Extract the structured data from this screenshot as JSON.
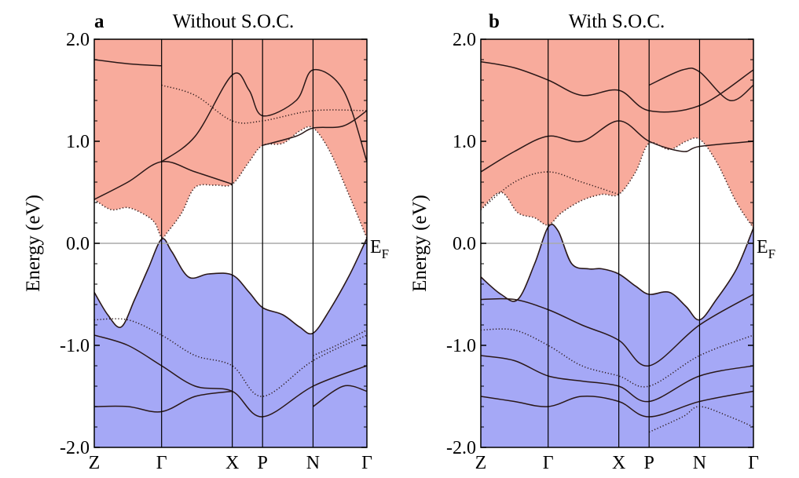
{
  "colors": {
    "conduction": "#f8ab9c",
    "valence": "#a5a8f6",
    "band_line": "#2a1818",
    "fermi_line": "#aaaaaa",
    "frame": "#000000"
  },
  "chart_data": [
    {
      "type": "area",
      "panel_letter": "a",
      "title": "Without S.O.C.",
      "ylabel": "Energy (eV)",
      "ylim": [
        -2.0,
        2.0
      ],
      "yticks": [
        "-2.0",
        "-1.0",
        "0.0",
        "1.0",
        "2.0"
      ],
      "kpoints": [
        "Z",
        "Γ",
        "X",
        "P",
        "N",
        "Γ"
      ],
      "kpoint_positions": [
        0,
        1,
        2.05,
        2.5,
        3.25,
        4.05
      ],
      "fermi_label": "E",
      "fermi_sub": "F",
      "conduction_band_minimum": [
        [
          0,
          0.43
        ],
        [
          0.25,
          0.33
        ],
        [
          0.5,
          0.35
        ],
        [
          0.75,
          0.28
        ],
        [
          0.9,
          0.2
        ],
        [
          1,
          0.06
        ],
        [
          1.1,
          0.12
        ],
        [
          1.3,
          0.3
        ],
        [
          1.5,
          0.55
        ],
        [
          1.8,
          0.57
        ],
        [
          2.05,
          0.58
        ],
        [
          2.3,
          0.8
        ],
        [
          2.5,
          0.96
        ],
        [
          2.8,
          0.98
        ],
        [
          3.05,
          1.1
        ],
        [
          3.25,
          1.13
        ],
        [
          3.5,
          0.9
        ],
        [
          3.8,
          0.45
        ],
        [
          4.05,
          0.05
        ]
      ],
      "valence_band_maximum": [
        [
          0,
          -0.48
        ],
        [
          0.2,
          -0.7
        ],
        [
          0.4,
          -0.82
        ],
        [
          0.6,
          -0.55
        ],
        [
          0.8,
          -0.25
        ],
        [
          1,
          0.04
        ],
        [
          1.15,
          -0.08
        ],
        [
          1.4,
          -0.33
        ],
        [
          1.7,
          -0.3
        ],
        [
          2.05,
          -0.31
        ],
        [
          2.3,
          -0.48
        ],
        [
          2.5,
          -0.63
        ],
        [
          2.8,
          -0.7
        ],
        [
          3.05,
          -0.82
        ],
        [
          3.25,
          -0.88
        ],
        [
          3.5,
          -0.65
        ],
        [
          3.8,
          -0.3
        ],
        [
          4.05,
          0.05
        ]
      ],
      "bands": [
        [
          [
            0,
            1.8
          ],
          [
            0.5,
            1.76
          ],
          [
            1,
            1.74
          ]
        ],
        [
          [
            0,
            0.43
          ],
          [
            0.5,
            0.6
          ],
          [
            1,
            0.8
          ],
          [
            1.5,
            0.7
          ],
          [
            2.05,
            0.58
          ]
        ],
        [
          [
            1,
            1.55
          ],
          [
            1.5,
            1.45
          ],
          [
            2.05,
            1.2
          ],
          [
            2.5,
            1.2
          ],
          [
            3.25,
            1.3
          ],
          [
            4.05,
            1.3
          ]
        ],
        [
          [
            1,
            0.8
          ],
          [
            1.5,
            1.05
          ],
          [
            2.05,
            1.65
          ],
          [
            2.3,
            1.5
          ],
          [
            2.5,
            1.25
          ],
          [
            3,
            1.4
          ],
          [
            3.25,
            1.7
          ],
          [
            3.7,
            1.5
          ],
          [
            4.05,
            0.8
          ]
        ],
        [
          [
            2.5,
            0.96
          ],
          [
            3,
            1.05
          ],
          [
            3.25,
            1.13
          ],
          [
            3.7,
            1.15
          ],
          [
            4.05,
            1.3
          ]
        ],
        [
          [
            0,
            -0.75
          ],
          [
            0.5,
            -0.75
          ],
          [
            1,
            -0.9
          ],
          [
            1.5,
            -1.1
          ],
          [
            2.05,
            -1.2
          ],
          [
            2.5,
            -1.5
          ],
          [
            3.25,
            -1.15
          ],
          [
            4.05,
            -0.9
          ]
        ],
        [
          [
            0,
            -0.9
          ],
          [
            0.5,
            -1.0
          ],
          [
            1,
            -1.2
          ],
          [
            1.5,
            -1.4
          ],
          [
            2.05,
            -1.45
          ],
          [
            2.5,
            -1.7
          ],
          [
            3.25,
            -1.4
          ],
          [
            4.05,
            -1.2
          ]
        ],
        [
          [
            0,
            -1.6
          ],
          [
            0.5,
            -1.6
          ],
          [
            1,
            -1.65
          ],
          [
            1.5,
            -1.5
          ],
          [
            2.05,
            -1.45
          ]
        ],
        [
          [
            3.25,
            -1.1
          ],
          [
            3.6,
            -1.0
          ],
          [
            4.05,
            -0.85
          ]
        ],
        [
          [
            3.25,
            -1.6
          ],
          [
            3.7,
            -1.4
          ],
          [
            4.05,
            -1.45
          ]
        ]
      ]
    },
    {
      "type": "area",
      "panel_letter": "b",
      "title": "With S.O.C.",
      "ylabel": "Energy (eV)",
      "ylim": [
        -2.0,
        2.0
      ],
      "yticks": [
        "-2.0",
        "-1.0",
        "0.0",
        "1.0",
        "2.0"
      ],
      "kpoints": [
        "Z",
        "Γ",
        "X",
        "P",
        "N",
        "Γ"
      ],
      "kpoint_positions": [
        0,
        1,
        2.05,
        2.5,
        3.25,
        4.05
      ],
      "fermi_label": "E",
      "fermi_sub": "F",
      "conduction_band_minimum": [
        [
          0,
          0.33
        ],
        [
          0.3,
          0.5
        ],
        [
          0.55,
          0.3
        ],
        [
          0.8,
          0.25
        ],
        [
          1,
          0.18
        ],
        [
          1.2,
          0.3
        ],
        [
          1.5,
          0.42
        ],
        [
          1.8,
          0.48
        ],
        [
          2.05,
          0.48
        ],
        [
          2.3,
          0.7
        ],
        [
          2.5,
          0.98
        ],
        [
          2.8,
          0.92
        ],
        [
          3.05,
          1.0
        ],
        [
          3.25,
          1.02
        ],
        [
          3.5,
          0.8
        ],
        [
          3.8,
          0.4
        ],
        [
          4.05,
          0.15
        ]
      ],
      "valence_band_maximum": [
        [
          0,
          -0.33
        ],
        [
          0.3,
          -0.5
        ],
        [
          0.55,
          -0.55
        ],
        [
          0.8,
          -0.2
        ],
        [
          1,
          0.16
        ],
        [
          1.15,
          0.12
        ],
        [
          1.35,
          -0.2
        ],
        [
          1.6,
          -0.25
        ],
        [
          1.8,
          -0.25
        ],
        [
          2.05,
          -0.3
        ],
        [
          2.3,
          -0.42
        ],
        [
          2.5,
          -0.5
        ],
        [
          2.8,
          -0.48
        ],
        [
          3.05,
          -0.62
        ],
        [
          3.25,
          -0.75
        ],
        [
          3.5,
          -0.55
        ],
        [
          3.8,
          -0.25
        ],
        [
          4.05,
          0.15
        ]
      ],
      "bands": [
        [
          [
            0,
            1.78
          ],
          [
            0.5,
            1.72
          ],
          [
            1,
            1.6
          ],
          [
            1.5,
            1.45
          ],
          [
            2.05,
            1.5
          ],
          [
            2.5,
            1.3
          ],
          [
            3.25,
            1.35
          ],
          [
            4.05,
            1.7
          ]
        ],
        [
          [
            0,
            0.7
          ],
          [
            0.5,
            0.9
          ],
          [
            1,
            1.05
          ],
          [
            1.5,
            1.0
          ],
          [
            2.05,
            1.2
          ],
          [
            2.5,
            1.0
          ],
          [
            3,
            0.9
          ],
          [
            3.25,
            0.95
          ],
          [
            4.05,
            1.0
          ]
        ],
        [
          [
            0,
            0.33
          ],
          [
            0.5,
            0.6
          ],
          [
            1,
            0.7
          ],
          [
            1.5,
            0.6
          ],
          [
            2.05,
            0.48
          ]
        ],
        [
          [
            2.5,
            1.55
          ],
          [
            3,
            1.7
          ],
          [
            3.25,
            1.68
          ],
          [
            3.7,
            1.4
          ],
          [
            4.05,
            1.55
          ]
        ],
        [
          [
            0,
            -0.55
          ],
          [
            0.5,
            -0.55
          ],
          [
            1,
            -0.65
          ],
          [
            1.5,
            -0.8
          ],
          [
            2.05,
            -0.95
          ],
          [
            2.5,
            -1.2
          ],
          [
            3.25,
            -0.8
          ],
          [
            4.05,
            -0.5
          ]
        ],
        [
          [
            0,
            -0.85
          ],
          [
            0.5,
            -0.85
          ],
          [
            1,
            -1.0
          ],
          [
            1.5,
            -1.2
          ],
          [
            2.05,
            -1.3
          ],
          [
            2.5,
            -1.4
          ],
          [
            3.25,
            -1.1
          ],
          [
            4.05,
            -0.9
          ]
        ],
        [
          [
            0,
            -1.1
          ],
          [
            0.5,
            -1.15
          ],
          [
            1,
            -1.3
          ],
          [
            1.5,
            -1.35
          ],
          [
            2.05,
            -1.4
          ],
          [
            2.5,
            -1.55
          ],
          [
            3.25,
            -1.3
          ],
          [
            4.05,
            -1.2
          ]
        ],
        [
          [
            0,
            -1.5
          ],
          [
            0.5,
            -1.55
          ],
          [
            1,
            -1.6
          ],
          [
            1.5,
            -1.5
          ],
          [
            2.05,
            -1.55
          ],
          [
            2.5,
            -1.7
          ],
          [
            3.25,
            -1.55
          ],
          [
            4.05,
            -1.45
          ]
        ],
        [
          [
            2.5,
            -1.85
          ],
          [
            3,
            -1.7
          ],
          [
            3.25,
            -1.6
          ],
          [
            3.7,
            -1.7
          ],
          [
            4.05,
            -1.8
          ]
        ]
      ]
    }
  ]
}
